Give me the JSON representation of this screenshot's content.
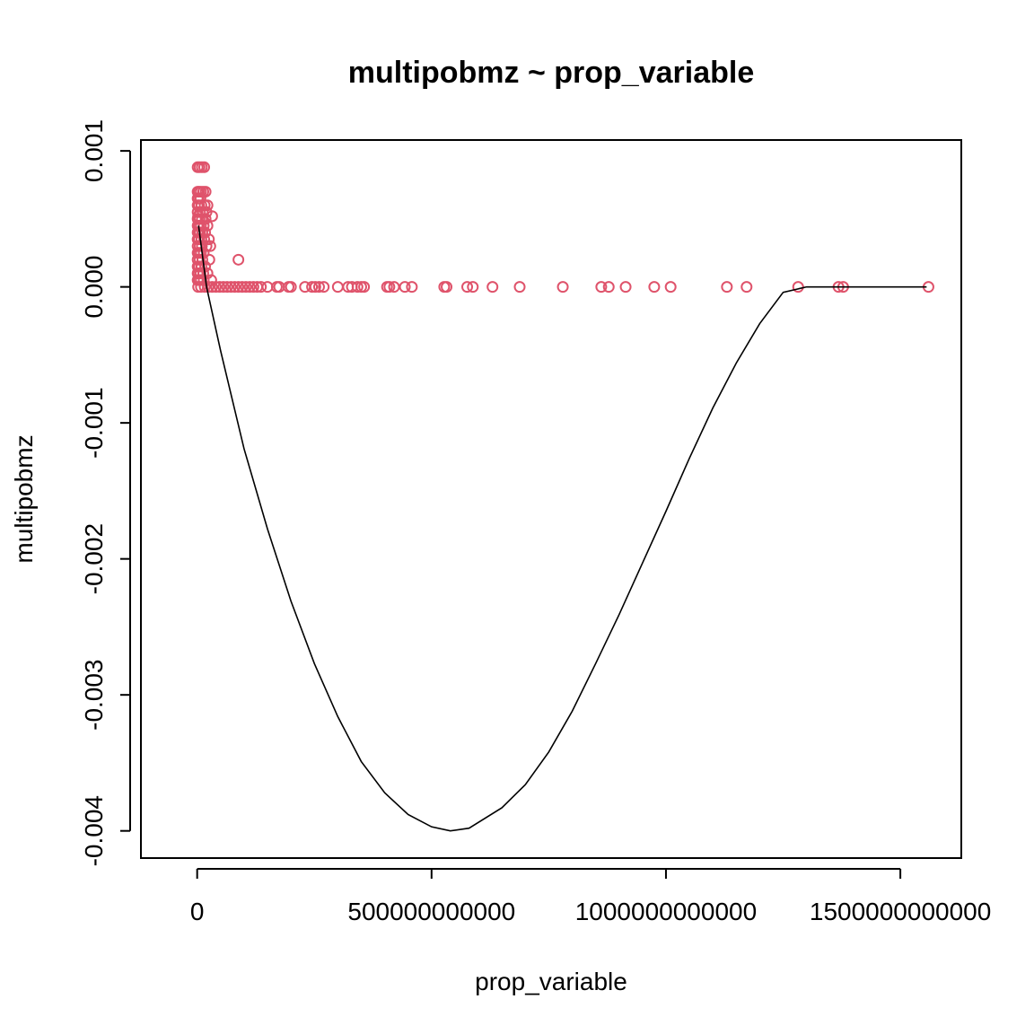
{
  "chart_data": {
    "type": "scatter",
    "title": "multipobmz ~ prop_variable",
    "xlabel": "prop_variable",
    "ylabel": "multipobmz",
    "xlim": [
      -120000000000,
      1630000000000
    ],
    "ylim": [
      -0.0042,
      0.00108
    ],
    "x_ticks": [
      0,
      500000000000,
      1000000000000,
      1500000000000
    ],
    "x_tick_labels": [
      "0",
      "500000000000",
      "1000000000000",
      "1500000000000"
    ],
    "y_ticks": [
      0.001,
      0.0,
      -0.001,
      -0.002,
      -0.003,
      -0.004
    ],
    "y_tick_labels": [
      "0.001",
      "0.000",
      "-0.001",
      "-0.002",
      "-0.003",
      "-0.004"
    ],
    "grid": false,
    "point_color": "#DF536B",
    "line_color": "#000000",
    "points": [
      [
        1000000000,
        0.00088
      ],
      [
        5000000000,
        0.00088
      ],
      [
        10000000000,
        0.00088
      ],
      [
        15000000000,
        0.00088
      ],
      [
        1000000000,
        0.0007
      ],
      [
        4000000000,
        0.0007
      ],
      [
        8000000000,
        0.0007
      ],
      [
        13000000000,
        0.0007
      ],
      [
        18000000000,
        0.0007
      ],
      [
        1000000000,
        0.00065
      ],
      [
        3000000000,
        0.00065
      ],
      [
        7000000000,
        0.00065
      ],
      [
        1000000000,
        0.0006
      ],
      [
        4000000000,
        0.0006
      ],
      [
        9000000000,
        0.0006
      ],
      [
        16000000000,
        0.0006
      ],
      [
        22000000000,
        0.0006
      ],
      [
        1000000000,
        0.00055
      ],
      [
        6000000000,
        0.00055
      ],
      [
        12000000000,
        0.00055
      ],
      [
        20000000000,
        0.00055
      ],
      [
        2000000000,
        0.00052
      ],
      [
        32000000000,
        0.00052
      ],
      [
        1000000000,
        0.0005
      ],
      [
        5000000000,
        0.0005
      ],
      [
        10000000000,
        0.0005
      ],
      [
        18000000000,
        0.0005
      ],
      [
        1000000000,
        0.00045
      ],
      [
        4000000000,
        0.00045
      ],
      [
        8000000000,
        0.00045
      ],
      [
        14000000000,
        0.00045
      ],
      [
        22000000000,
        0.00045
      ],
      [
        1000000000,
        0.0004
      ],
      [
        3000000000,
        0.0004
      ],
      [
        6000000000,
        0.0004
      ],
      [
        11000000000,
        0.0004
      ],
      [
        17000000000,
        0.0004
      ],
      [
        1000000000,
        0.00035
      ],
      [
        4000000000,
        0.00035
      ],
      [
        9000000000,
        0.00035
      ],
      [
        15000000000,
        0.00035
      ],
      [
        25000000000,
        0.00035
      ],
      [
        1000000000,
        0.0003
      ],
      [
        5000000000,
        0.0003
      ],
      [
        10000000000,
        0.0003
      ],
      [
        20000000000,
        0.0003
      ],
      [
        28000000000,
        0.0003
      ],
      [
        1000000000,
        0.00025
      ],
      [
        4000000000,
        0.00025
      ],
      [
        8000000000,
        0.00025
      ],
      [
        14000000000,
        0.00025
      ],
      [
        1000000000,
        0.0002
      ],
      [
        5000000000,
        0.0002
      ],
      [
        11000000000,
        0.0002
      ],
      [
        26000000000,
        0.0002
      ],
      [
        88000000000,
        0.0002
      ],
      [
        1000000000,
        0.00015
      ],
      [
        4000000000,
        0.00015
      ],
      [
        9000000000,
        0.00015
      ],
      [
        17000000000,
        0.00015
      ],
      [
        1000000000,
        0.0001
      ],
      [
        3000000000,
        0.0001
      ],
      [
        7000000000,
        0.0001
      ],
      [
        13000000000,
        0.0001
      ],
      [
        22000000000,
        0.0001
      ],
      [
        1000000000,
        5e-05
      ],
      [
        4000000000,
        5e-05
      ],
      [
        8000000000,
        5e-05
      ],
      [
        14000000000,
        5e-05
      ],
      [
        30000000000,
        5e-05
      ],
      [
        2000000000,
        0.0
      ],
      [
        8000000000,
        0.0
      ],
      [
        16000000000,
        0.0
      ],
      [
        24000000000,
        0.0
      ],
      [
        32000000000,
        0.0
      ],
      [
        40000000000,
        0.0
      ],
      [
        48000000000,
        0.0
      ],
      [
        56000000000,
        0.0
      ],
      [
        64000000000,
        0.0
      ],
      [
        72000000000,
        0.0
      ],
      [
        80000000000,
        0.0
      ],
      [
        88000000000,
        0.0
      ],
      [
        96000000000,
        0.0
      ],
      [
        104000000000,
        0.0
      ],
      [
        112000000000,
        0.0
      ],
      [
        120000000000,
        0.0
      ],
      [
        128000000000,
        0.0
      ],
      [
        136000000000,
        0.0
      ],
      [
        150000000000,
        0.0
      ],
      [
        170000000000,
        0.0
      ],
      [
        175000000000,
        0.0
      ],
      [
        195000000000,
        0.0
      ],
      [
        200000000000,
        0.0
      ],
      [
        230000000000,
        0.0
      ],
      [
        245000000000,
        0.0
      ],
      [
        252000000000,
        0.0
      ],
      [
        260000000000,
        0.0
      ],
      [
        270000000000,
        0.0
      ],
      [
        300000000000,
        0.0
      ],
      [
        322000000000,
        0.0
      ],
      [
        330000000000,
        0.0
      ],
      [
        342000000000,
        0.0
      ],
      [
        350000000000,
        0.0
      ],
      [
        356000000000,
        0.0
      ],
      [
        405000000000,
        0.0
      ],
      [
        410000000000,
        0.0
      ],
      [
        420000000000,
        0.0
      ],
      [
        443000000000,
        0.0
      ],
      [
        458000000000,
        0.0
      ],
      [
        527000000000,
        0.0
      ],
      [
        532000000000,
        0.0
      ],
      [
        576000000000,
        0.0
      ],
      [
        588000000000,
        0.0
      ],
      [
        630000000000,
        0.0
      ],
      [
        688000000000,
        0.0
      ],
      [
        780000000000,
        0.0
      ],
      [
        862000000000,
        0.0
      ],
      [
        878000000000,
        0.0
      ],
      [
        914000000000,
        0.0
      ],
      [
        975000000000,
        0.0
      ],
      [
        1010000000000,
        0.0
      ],
      [
        1130000000000,
        0.0
      ],
      [
        1172000000000,
        0.0
      ],
      [
        1282000000000,
        0.0
      ],
      [
        1368000000000,
        0.0
      ],
      [
        1378000000000,
        0.0
      ],
      [
        1560000000000,
        0.0
      ]
    ],
    "fit_line": {
      "x": [
        3000000000,
        20000000000,
        50000000000,
        100000000000,
        150000000000,
        200000000000,
        250000000000,
        300000000000,
        350000000000,
        400000000000,
        450000000000,
        500000000000,
        540000000000,
        580000000000,
        650000000000,
        700000000000,
        750000000000,
        800000000000,
        850000000000,
        900000000000,
        950000000000,
        1000000000000,
        1050000000000,
        1100000000000,
        1150000000000,
        1200000000000,
        1250000000000,
        1300000000000,
        1350000000000,
        1400000000000,
        1450000000000,
        1500000000000,
        1530000000000,
        1556000000000
      ],
      "y": [
        0.00045,
        0.0,
        -0.00047,
        -0.00119,
        -0.00178,
        -0.00231,
        -0.00277,
        -0.00316,
        -0.00349,
        -0.00372,
        -0.00388,
        -0.00397,
        -0.004,
        -0.00398,
        -0.00383,
        -0.00366,
        -0.00342,
        -0.00312,
        -0.00277,
        -0.00241,
        -0.00203,
        -0.00165,
        -0.00126,
        -0.00089,
        -0.00056,
        -0.00027,
        -4e-05,
        0.0,
        0.0,
        0.0,
        0.0,
        0.0,
        0.0,
        0.0
      ]
    }
  }
}
